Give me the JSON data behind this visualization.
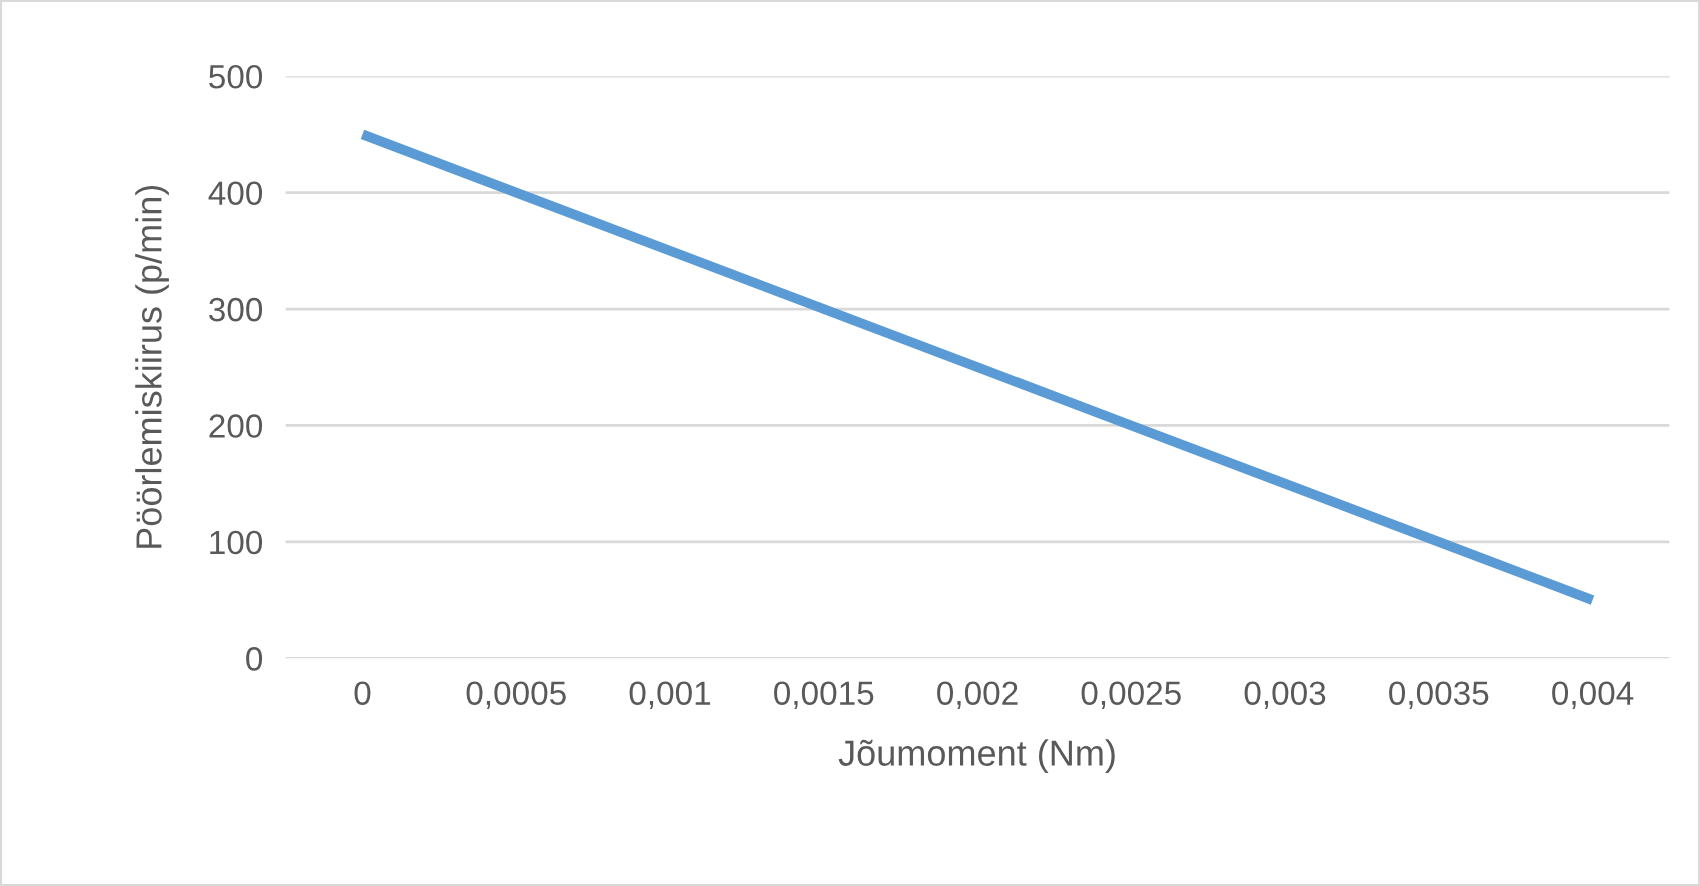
{
  "chart_data": {
    "type": "line",
    "xlabel": "Jõumoment (Nm)",
    "ylabel": "Pöörlemiskiirus (p/min)",
    "categories": [
      "0",
      "0,0005",
      "0,001",
      "0,0015",
      "0,002",
      "0,0025",
      "0,003",
      "0,0035",
      "0,004"
    ],
    "series": [
      {
        "color": "#5b9bd5",
        "values": [
          450,
          400,
          350,
          300,
          250,
          200,
          150,
          100,
          50
        ]
      }
    ],
    "ylim": [
      0,
      500
    ],
    "yticks": [
      0,
      100,
      200,
      300,
      400,
      500
    ],
    "grid": "y",
    "marker": "none",
    "line_style": "solid"
  }
}
